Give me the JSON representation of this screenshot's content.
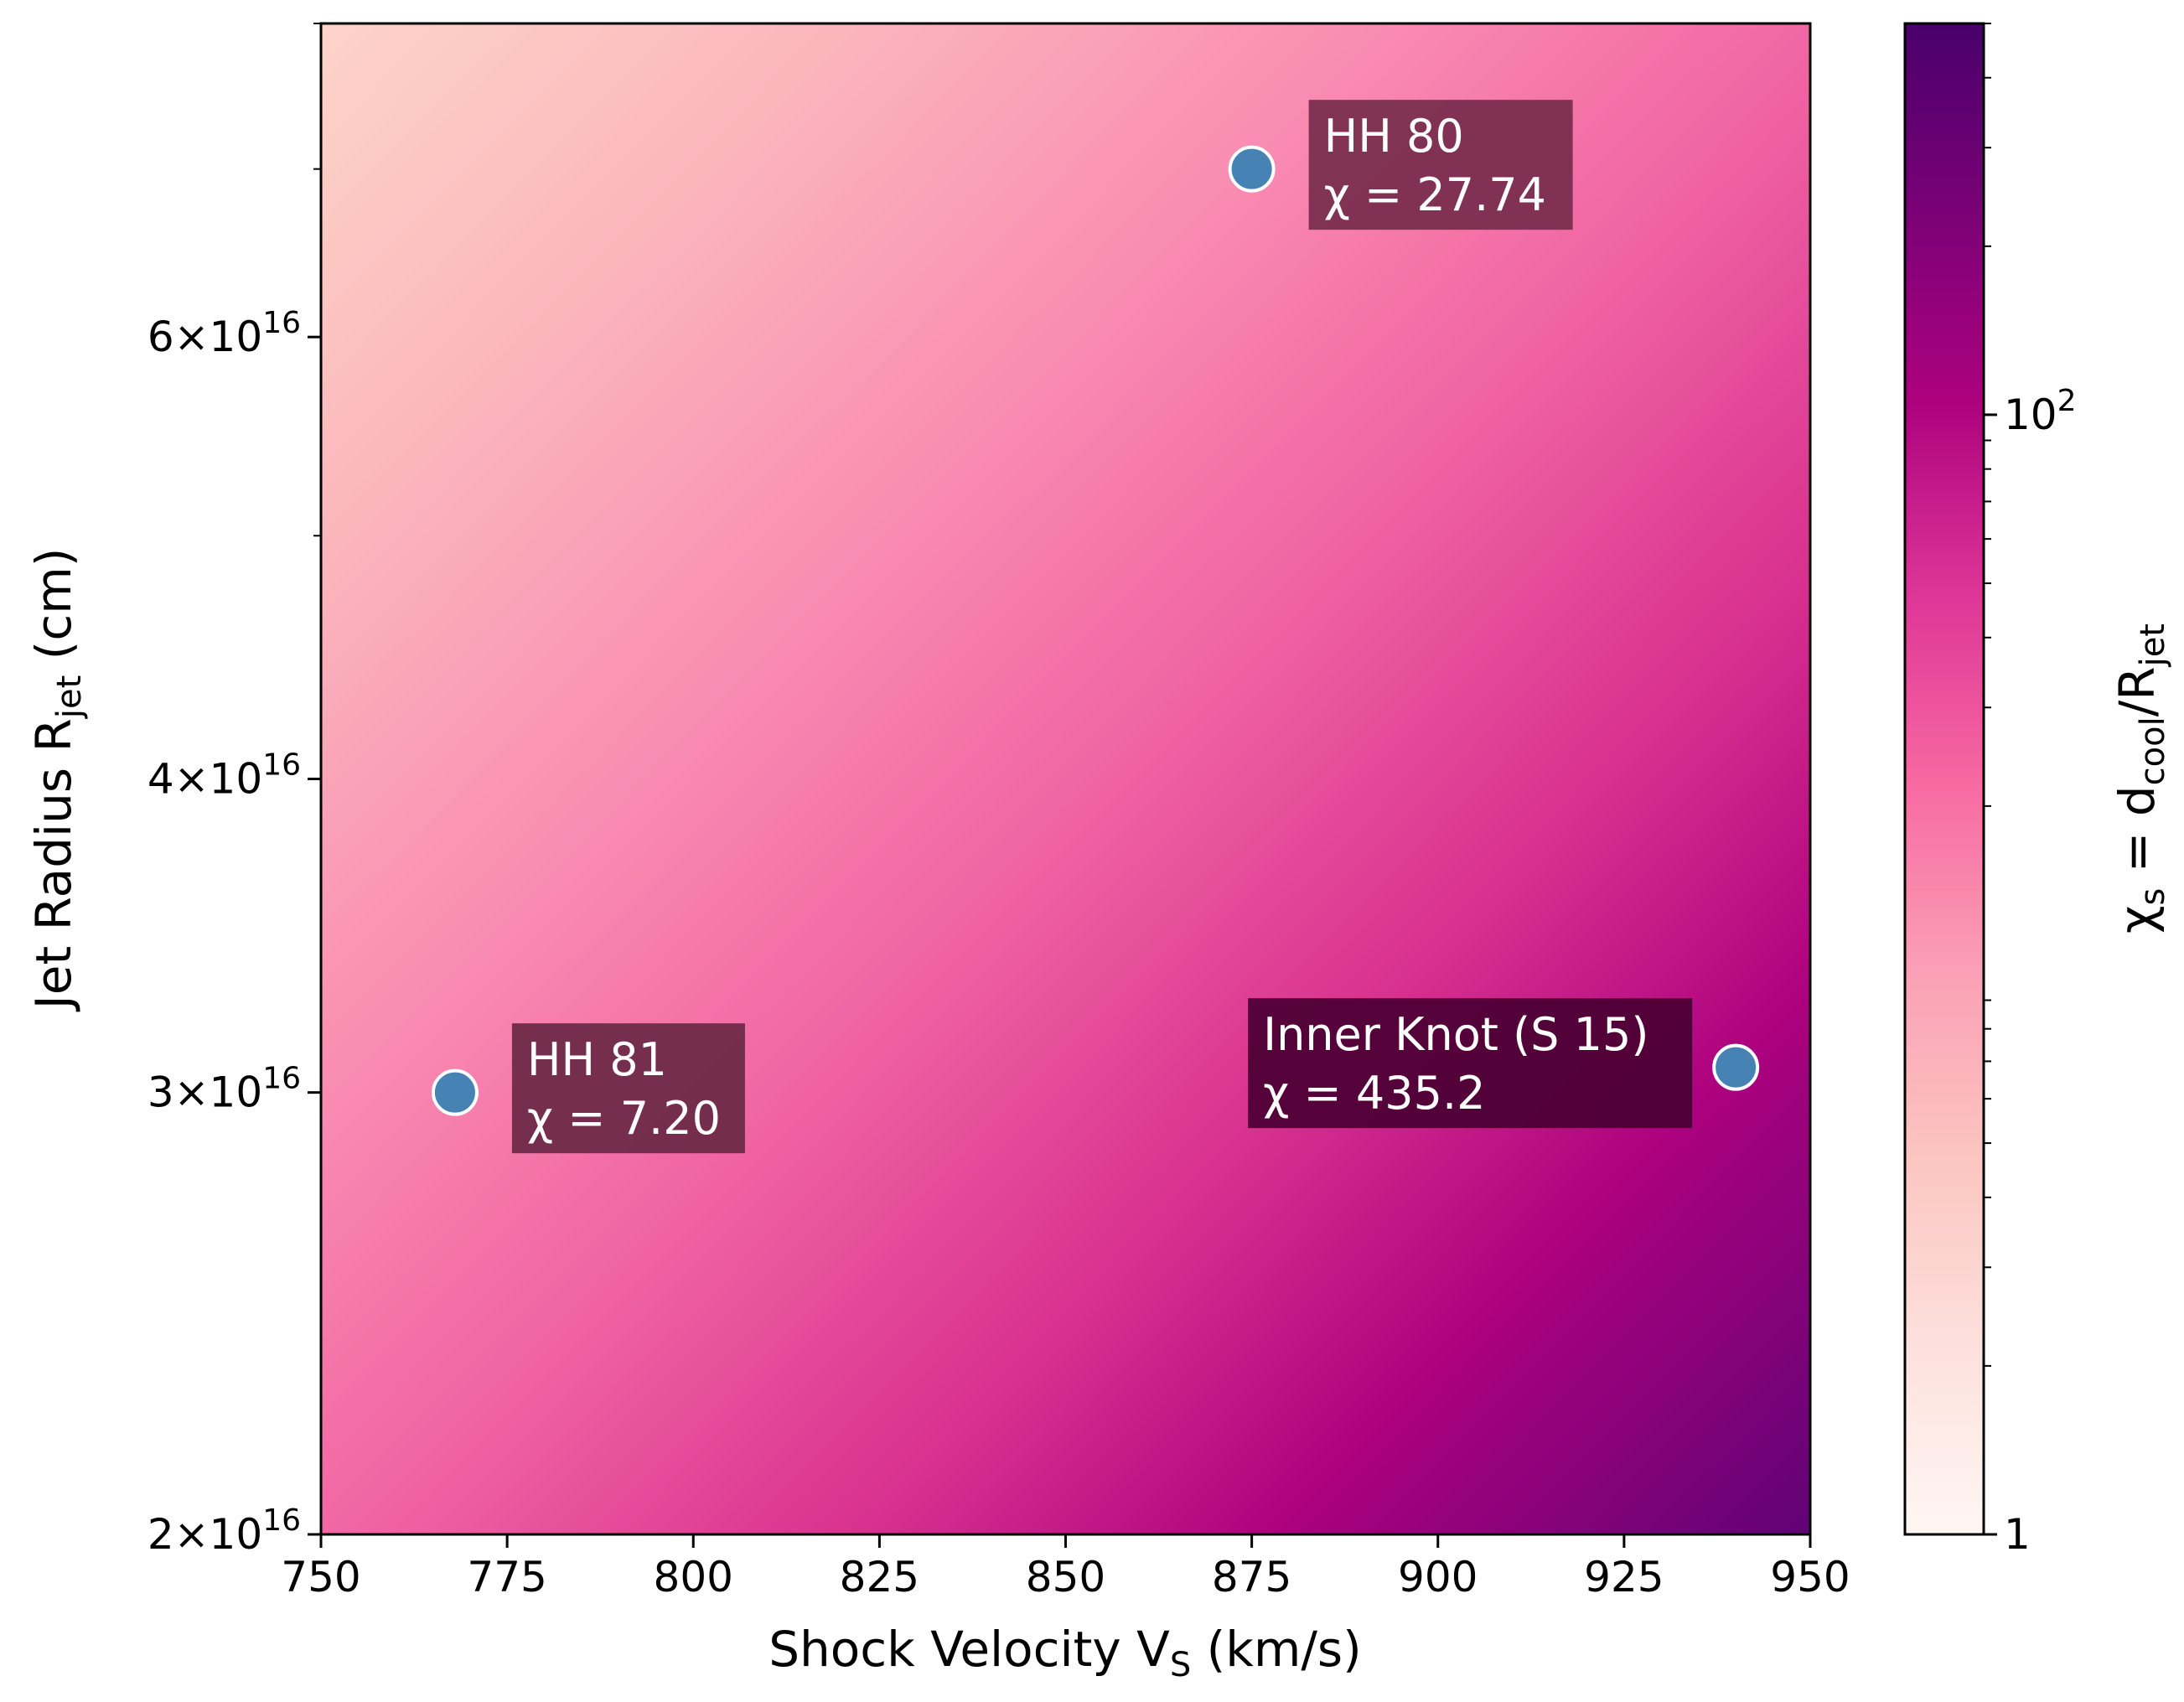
{
  "chart_data": {
    "type": "heatmap",
    "title": "",
    "xlabel": "Shock Velocity V",
    "xlabel_sub": "S",
    "xlabel_suffix": " (km/s)",
    "ylabel": "Jet Radius R",
    "ylabel_sub": "jet",
    "ylabel_suffix": " (cm)",
    "xlim": [
      750,
      950
    ],
    "ylim": [
      2e+16,
      8e+16
    ],
    "yscale": "log",
    "x_ticks": [
      750,
      775,
      800,
      825,
      850,
      875,
      900,
      925,
      950
    ],
    "x_tick_labels": [
      "750",
      "775",
      "800",
      "825",
      "850",
      "875",
      "900",
      "925",
      "950"
    ],
    "y_ticks": [
      {
        "value": 2e+16,
        "mantissa": "2",
        "times": "×",
        "base": "10",
        "exponent": "16"
      },
      {
        "value": 3e+16,
        "mantissa": "3",
        "times": "×",
        "base": "10",
        "exponent": "16"
      },
      {
        "value": 4e+16,
        "mantissa": "4",
        "times": "×",
        "base": "10",
        "exponent": "16"
      },
      {
        "value": 6e+16,
        "mantissa": "6",
        "times": "×",
        "base": "10",
        "exponent": "16"
      }
    ],
    "y_minor_ticks": [
      5e+16,
      7e+16,
      8e+16
    ],
    "colormap": "RdPu",
    "colorbar": {
      "label_main": "χ",
      "label_sub1": "s",
      "label_mid": " = d",
      "label_sub2": "cool",
      "label_mid2": "/R",
      "label_sub3": "jet",
      "scale": "log",
      "range": [
        1,
        500
      ],
      "tick_labels": [
        {
          "value": 1,
          "text": "1",
          "exp": ""
        },
        {
          "value": 100,
          "text": "10",
          "exp": "2"
        }
      ]
    },
    "field_corners": {
      "v750_r8e16": 1.6,
      "v950_r8e16": 90,
      "v750_r2e16": 90,
      "v950_r2e16": 480
    },
    "points": [
      {
        "name": "HH 81",
        "chi_label": "χ = 7.20",
        "x": 768,
        "y": 3e+16,
        "label_side": "right"
      },
      {
        "name": "HH 80",
        "chi_label": "χ = 27.74",
        "x": 875,
        "y": 7e+16,
        "label_side": "right"
      },
      {
        "name": "Inner Knot (S 15)",
        "chi_label": "χ = 435.2",
        "x": 940,
        "y": 3.07e+16,
        "label_side": "left"
      }
    ],
    "point_color": "#4682b4",
    "annotation_box_colors": [
      "#6e2a48",
      "#7a2e4f",
      "#4d0035"
    ]
  }
}
